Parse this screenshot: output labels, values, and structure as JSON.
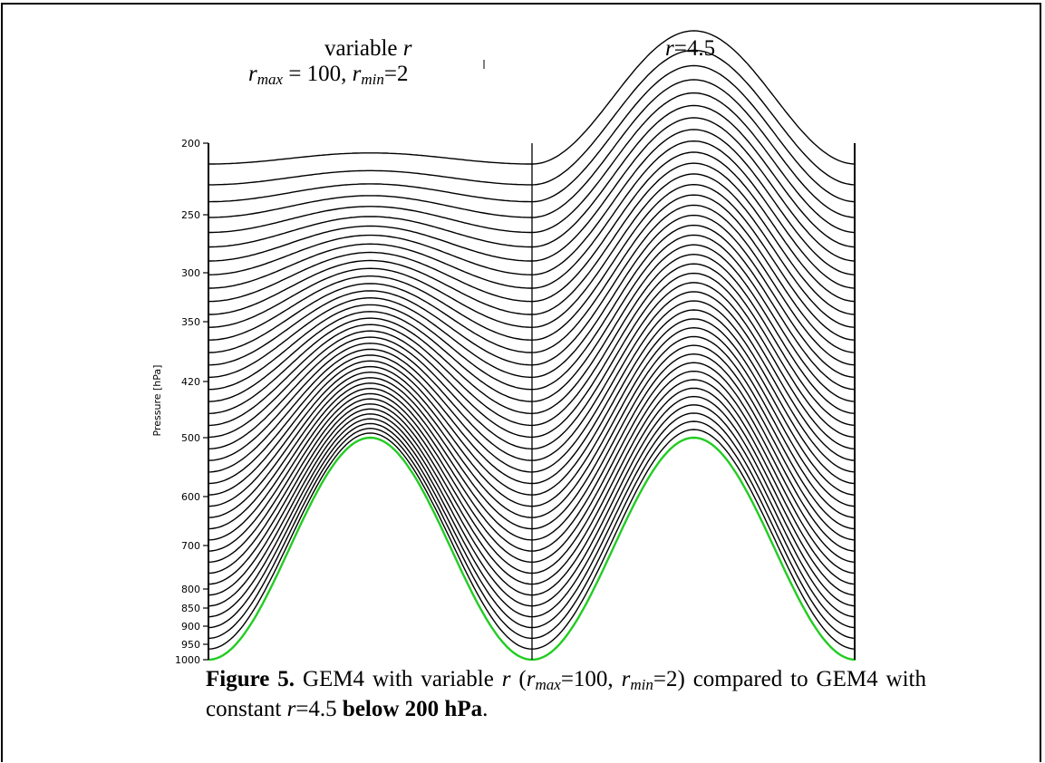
{
  "panels": {
    "left": {
      "title_line1_text": "variable ",
      "title_line1_var": "r",
      "title_line2": {
        "r1": "r",
        "sub1": "max",
        "mid": " = 100, ",
        "r2": "r",
        "sub2": "min",
        "end": "=2"
      }
    },
    "right": {
      "title_var": "r",
      "title_rest": "=4.5"
    }
  },
  "chart_data": {
    "type": "line",
    "ylabel": "Pressure [hPa]",
    "y_ticks": [
      200,
      250,
      300,
      350,
      420,
      500,
      600,
      700,
      800,
      850,
      900,
      950,
      1000
    ],
    "num_levels": 41,
    "left_panel": {
      "top_level_amplitude_fraction": 0.05
    },
    "right_panel": {
      "top_level_amplitude_fraction": 0.6
    },
    "colors": {
      "levels": "#000000",
      "surface": "#22cc22"
    }
  },
  "caption": {
    "fig_label": "Figure 5.",
    "p1": " GEM4 with variable ",
    "r_a": "r",
    "p2": " (",
    "r_b": "r",
    "sub_b": "max",
    "p3": "=100, ",
    "r_c": "r",
    "sub_c": "min",
    "p4": "=2) compared to GEM4 with constant ",
    "r_d": "r",
    "p5": "=4.5 ",
    "bold_end": "below 200 hPa",
    "p6": "."
  }
}
